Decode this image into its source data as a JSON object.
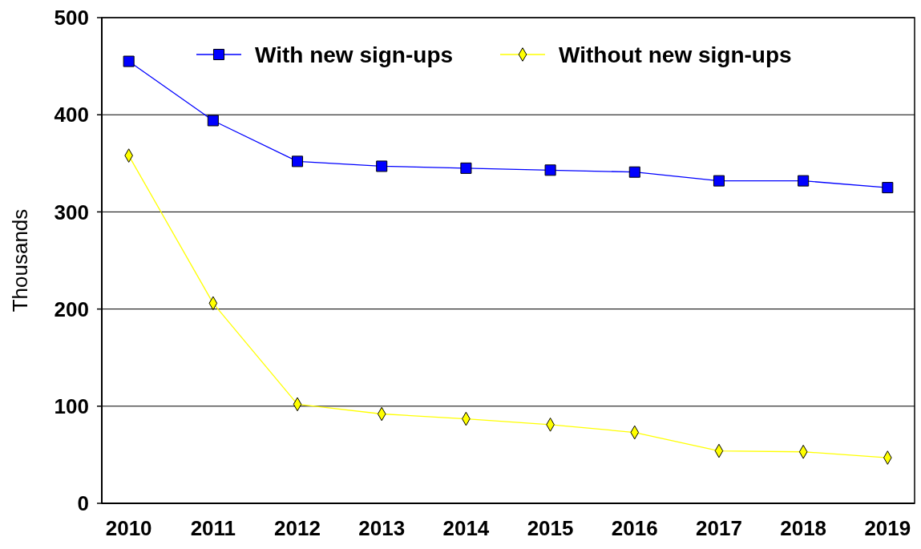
{
  "chart_data": {
    "type": "line",
    "ylabel": "Thousands",
    "categories": [
      "2010",
      "2011",
      "2012",
      "2013",
      "2014",
      "2015",
      "2016",
      "2017",
      "2018",
      "2019"
    ],
    "series": [
      {
        "name": "With new sign-ups",
        "color": "#0000ff",
        "marker": "square",
        "values": [
          455,
          394,
          352,
          347,
          345,
          343,
          341,
          332,
          332,
          325
        ]
      },
      {
        "name": "Without new sign-ups",
        "color": "#ffff00",
        "marker": "diamond",
        "values": [
          358,
          206,
          102,
          92,
          87,
          81,
          73,
          54,
          53,
          47
        ]
      }
    ],
    "ylim": [
      0,
      500
    ],
    "yticks": [
      0,
      100,
      200,
      300,
      400,
      500
    ],
    "grid": "y",
    "legend": "top",
    "line_style": "solid"
  }
}
